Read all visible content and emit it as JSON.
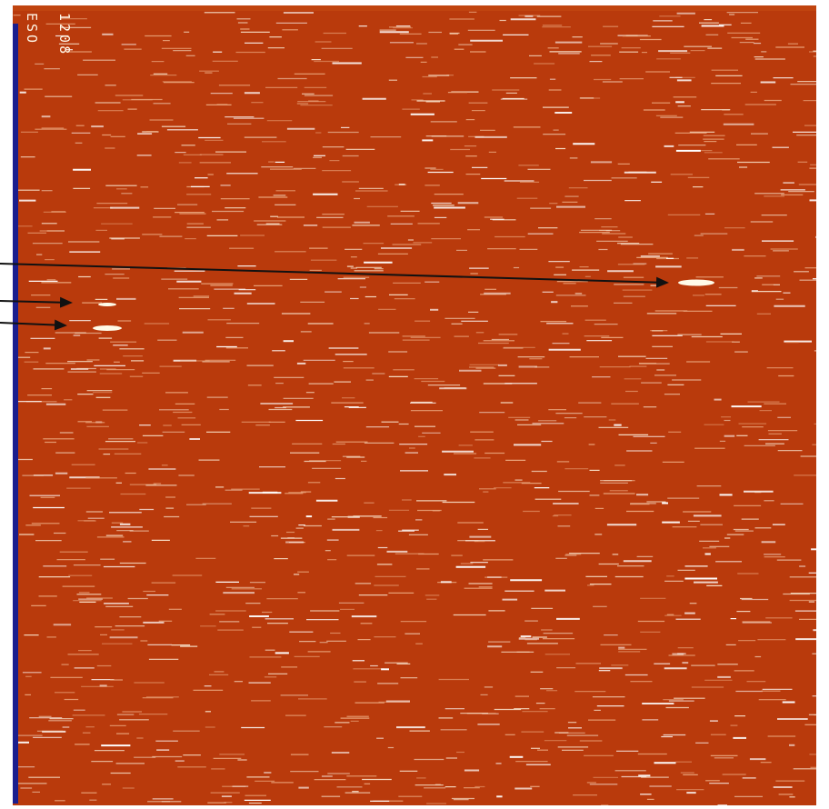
{
  "image": {
    "description_colors": {
      "background": "#b93a0c",
      "streak": "#f8e9d6",
      "edge_strip": "#1b1e8e",
      "arrow": "#111111"
    },
    "labels": {
      "org": "ESO",
      "code": "1208"
    },
    "arrows_count_visible": 3
  }
}
